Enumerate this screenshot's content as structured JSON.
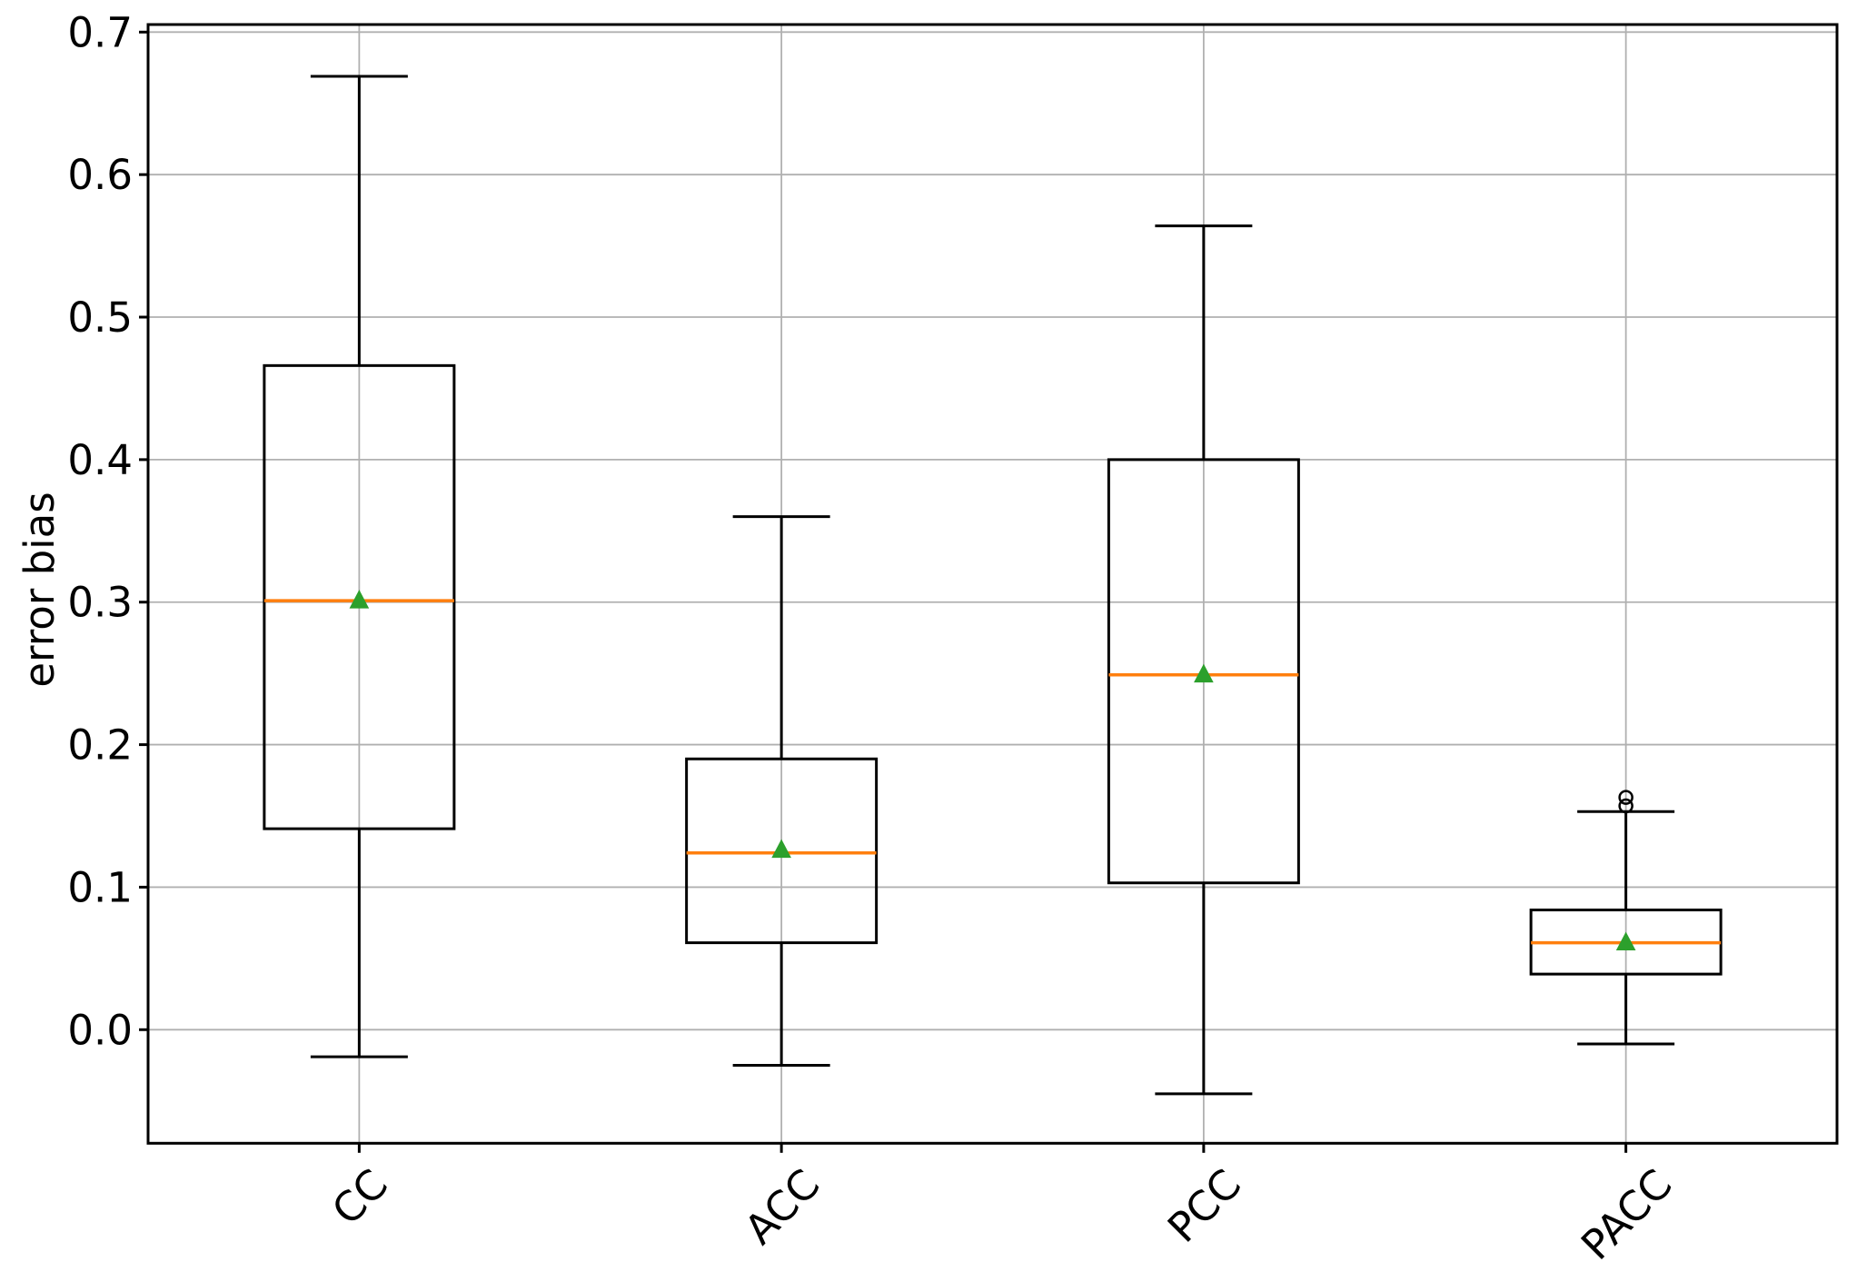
{
  "chart_data": {
    "type": "boxplot",
    "title": "",
    "xlabel": "",
    "ylabel": "error bias",
    "categories": [
      "CC",
      "ACC",
      "PCC",
      "PACC"
    ],
    "ytick_labels": [
      "0.0",
      "0.1",
      "0.2",
      "0.3",
      "0.4",
      "0.5",
      "0.6",
      "0.7"
    ],
    "yticks": [
      0.0,
      0.1,
      0.2,
      0.3,
      0.4,
      0.5,
      0.6,
      0.7
    ],
    "ylim": [
      -0.0797,
      0.7053
    ],
    "xlim": [
      0.5,
      4.5
    ],
    "grid": true,
    "legend": "none",
    "series": [
      {
        "label": "CC",
        "whislo": -0.019,
        "q1": 0.141,
        "med": 0.301,
        "mean": 0.302,
        "q3": 0.466,
        "whishi": 0.669,
        "fliers": []
      },
      {
        "label": "ACC",
        "whislo": -0.025,
        "q1": 0.061,
        "med": 0.124,
        "mean": 0.127,
        "q3": 0.19,
        "whishi": 0.36,
        "fliers": []
      },
      {
        "label": "PCC",
        "whislo": -0.045,
        "q1": 0.103,
        "med": 0.249,
        "mean": 0.25,
        "q3": 0.4,
        "whishi": 0.564,
        "fliers": []
      },
      {
        "label": "PACC",
        "whislo": -0.01,
        "q1": 0.039,
        "med": 0.061,
        "mean": 0.062,
        "q3": 0.084,
        "whishi": 0.153,
        "fliers": [
          0.157,
          0.163
        ]
      }
    ],
    "colors": {
      "box_line": "#000000",
      "median": "#ff7f0e",
      "mean_marker": "#2ca02c",
      "grid_line": "#b0b0b0",
      "text": "#000000",
      "background": "#ffffff"
    }
  }
}
